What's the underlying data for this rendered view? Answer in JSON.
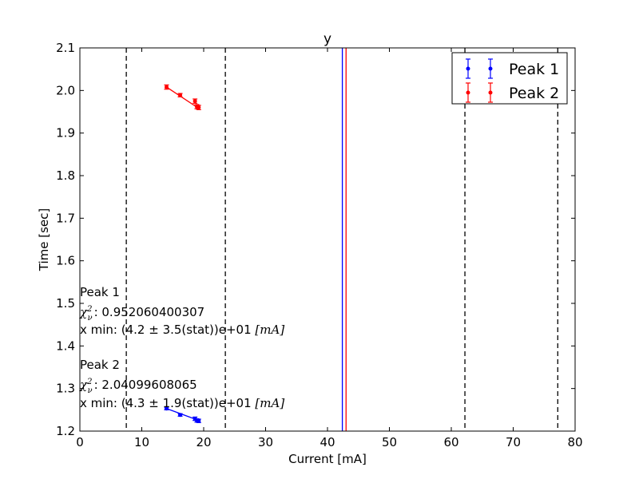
{
  "chart_data": {
    "type": "scatter",
    "title": "y",
    "xlabel": "Current [mA]",
    "ylabel": "Time [sec]",
    "xlim": [
      0,
      80
    ],
    "ylim": [
      1.2,
      2.1
    ],
    "xticks": [
      "0",
      "10",
      "20",
      "30",
      "40",
      "50",
      "60",
      "70",
      "80"
    ],
    "yticks": [
      "1.2",
      "1.3",
      "1.4",
      "1.5",
      "1.6",
      "1.7",
      "1.8",
      "1.9",
      "2.0",
      "2.1"
    ],
    "grid": false,
    "legend_position": "top-right",
    "series": [
      {
        "name": "Peak 1",
        "color": "#0000ff",
        "points": [
          {
            "x": 14.0,
            "y": 1.253,
            "err": 0.003
          },
          {
            "x": 16.2,
            "y": 1.238,
            "err": 0.003
          },
          {
            "x": 18.6,
            "y": 1.229,
            "err": 0.004
          },
          {
            "x": 18.9,
            "y": 1.225,
            "err": 0.004
          },
          {
            "x": 19.2,
            "y": 1.224,
            "err": 0.004
          }
        ],
        "fit": [
          {
            "x": 14.0,
            "y": 1.253
          },
          {
            "x": 19.2,
            "y": 1.225
          }
        ]
      },
      {
        "name": "Peak 2",
        "color": "#ff0000",
        "points": [
          {
            "x": 14.0,
            "y": 2.008,
            "err": 0.005
          },
          {
            "x": 16.2,
            "y": 1.989,
            "err": 0.004
          },
          {
            "x": 18.6,
            "y": 1.975,
            "err": 0.005
          },
          {
            "x": 18.9,
            "y": 1.962,
            "err": 0.005
          },
          {
            "x": 19.2,
            "y": 1.96,
            "err": 0.005
          }
        ],
        "fit": [
          {
            "x": 14.0,
            "y": 2.008
          },
          {
            "x": 19.2,
            "y": 1.958
          }
        ]
      }
    ],
    "vertical_lines": [
      {
        "x": 7.5,
        "style": "dashed",
        "color": "#000000"
      },
      {
        "x": 23.5,
        "style": "dashed",
        "color": "#000000"
      },
      {
        "x": 62.2,
        "style": "dashed",
        "color": "#000000"
      },
      {
        "x": 77.2,
        "style": "dashed",
        "color": "#000000"
      },
      {
        "x": 42.4,
        "style": "solid",
        "color": "#0000ff"
      },
      {
        "x": 43.0,
        "style": "solid",
        "color": "#ff0000"
      }
    ],
    "annotations": [
      {
        "name": "Peak 1",
        "chi_label": "χ",
        "chi_sub": "ν",
        "chi_sup": "2",
        "chi_value": ": 0.952060400307",
        "xmin_prefix": "x min: (4.2 ± 3.5(stat))e+01",
        "xmin_unit": "[mA]"
      },
      {
        "name": "Peak 2",
        "chi_label": "χ",
        "chi_sub": "ν",
        "chi_sup": "2",
        "chi_value": ": 2.04099608065",
        "xmin_prefix": "x min: (4.3 ± 1.9(stat))e+01",
        "xmin_unit": "[mA]"
      }
    ]
  }
}
